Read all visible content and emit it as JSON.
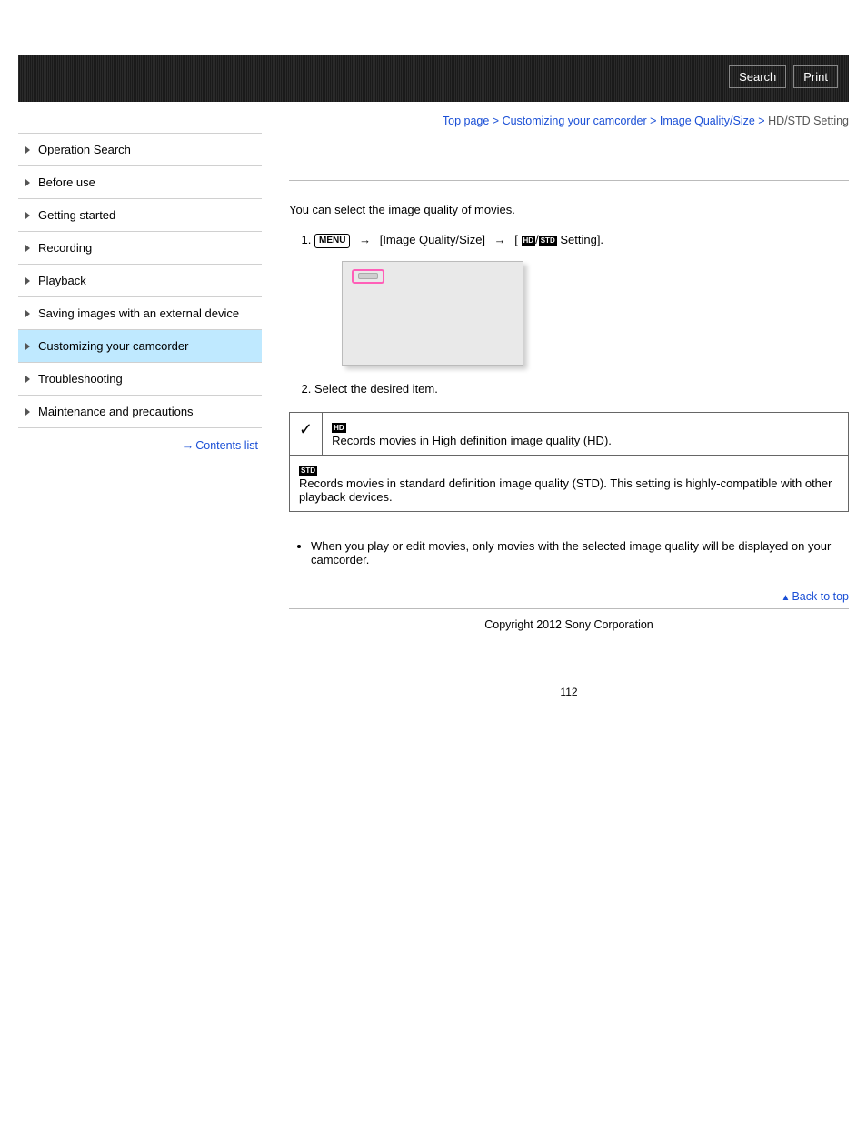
{
  "topbar": {
    "search_label": "Search",
    "print_label": "Print"
  },
  "breadcrumb": {
    "items": [
      "Top page",
      "Customizing your camcorder",
      "Image Quality/Size"
    ],
    "current": "HD/STD Setting",
    "sep": " > "
  },
  "sidebar": {
    "items": [
      {
        "label": "Operation Search",
        "active": false
      },
      {
        "label": "Before use",
        "active": false
      },
      {
        "label": "Getting started",
        "active": false
      },
      {
        "label": "Recording",
        "active": false
      },
      {
        "label": "Playback",
        "active": false
      },
      {
        "label": "Saving images with an external device",
        "active": false
      },
      {
        "label": "Customizing your camcorder",
        "active": true
      },
      {
        "label": "Troubleshooting",
        "active": false
      },
      {
        "label": "Maintenance and precautions",
        "active": false
      }
    ],
    "contents_list": "Contents list"
  },
  "content": {
    "intro": "You can select the image quality of movies.",
    "menu_label": "MENU",
    "step1_mid": "[Image Quality/Size]",
    "step1_bracket_open": "[",
    "badge_hd": "HD",
    "badge_std": "STD",
    "step1_slash": "/",
    "step1_tail": "Setting].",
    "step2": "Select the desired item.",
    "options": [
      {
        "checked": true,
        "badge": "HD",
        "text": "Records movies in High definition image quality (HD)."
      },
      {
        "checked": false,
        "badge": "STD",
        "text": "Records movies in standard definition image quality (STD). This setting is highly-compatible with other playback devices."
      }
    ],
    "notes": [
      "When you play or edit movies, only movies with the selected image quality will be displayed on your camcorder."
    ],
    "back_to_top": "Back to top"
  },
  "footer": {
    "copyright": "Copyright 2012 Sony Corporation",
    "page_number": "112"
  }
}
